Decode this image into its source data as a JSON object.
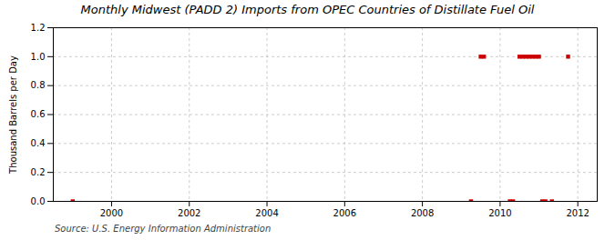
{
  "chart_data": {
    "type": "scatter",
    "title": "Monthly Midwest (PADD 2) Imports from OPEC Countries of Distillate Fuel Oil",
    "ylabel": "Thousand Barrels per Day",
    "source": "Source: U.S. Energy Information Administration",
    "x": [
      1999.0,
      2009.25,
      2009.5,
      2009.583,
      2010.25,
      2010.333,
      2010.5,
      2010.583,
      2010.667,
      2010.75,
      2010.833,
      2010.917,
      2011.0,
      2011.083,
      2011.167,
      2011.333,
      2011.75
    ],
    "values": [
      0.0,
      0.0,
      1.0,
      1.0,
      0.0,
      0.0,
      1.0,
      1.0,
      1.0,
      1.0,
      1.0,
      1.0,
      1.0,
      0.0,
      0.0,
      0.0,
      1.0
    ],
    "color": "#cc0000",
    "marker": "square",
    "xlim": [
      1998.5,
      2012.5
    ],
    "xticks": [
      2000,
      2002,
      2004,
      2006,
      2008,
      2010,
      2012
    ],
    "ylim": [
      0.0,
      1.2
    ],
    "yticks": [
      {
        "value": 0.0,
        "label": "0.0"
      },
      0.2,
      0.4,
      0.6,
      0.8,
      {
        "value": 1.0,
        "label": "1.0"
      },
      1.2
    ],
    "grid": true
  }
}
